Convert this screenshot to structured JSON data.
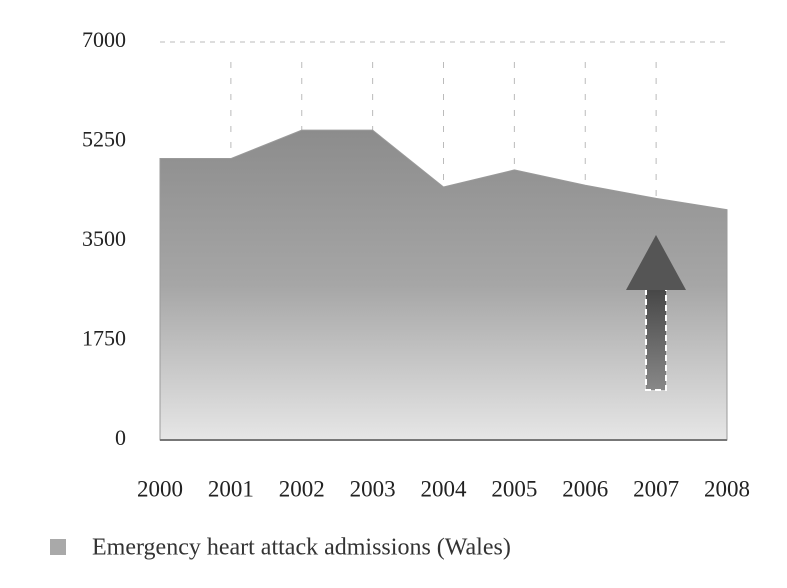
{
  "chart_data": {
    "type": "area",
    "categories": [
      "2000",
      "2001",
      "2002",
      "2003",
      "2004",
      "2005",
      "2006",
      "2007",
      "2008"
    ],
    "series": [
      {
        "name": "Emergency heart attack admissions (Wales)",
        "color": "#9a9a9a",
        "values": [
          4950,
          4950,
          5450,
          5450,
          4450,
          4750,
          4480,
          4250,
          4050
        ]
      }
    ],
    "ylim": [
      0,
      7000
    ],
    "yticks": [
      0,
      1750,
      3500,
      5250,
      7000
    ],
    "grid": true
  }
}
